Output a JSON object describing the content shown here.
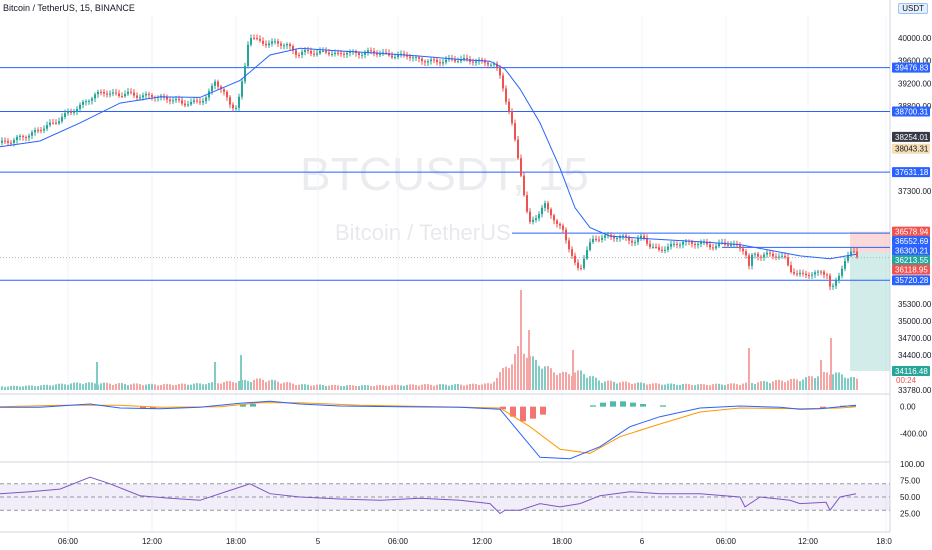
{
  "header": {
    "title": "Bitcoin / TetherUS, 15, BINANCE",
    "currency": "USDT"
  },
  "watermark": {
    "symbol": "BTCUSDT, 15",
    "name": "Bitcoin / TetherUS"
  },
  "colors": {
    "up": "#26a69a",
    "down": "#ef5350",
    "level": "#2962ff",
    "ma": "#2962ff",
    "macd": "#2962ff",
    "signal": "#ff9800",
    "rsi": "#7e57c2"
  },
  "chart_data": {
    "type": "candlestick",
    "y_range": [
      33500,
      40350
    ],
    "price_ticks": [
      "40000.00",
      "39600.00",
      "39200.00",
      "38800.00",
      "37300.00",
      "35300.00",
      "35000.00",
      "34700.00",
      "34400.00",
      "33780.00"
    ],
    "time_ticks": [
      "06:00",
      "12:00",
      "18:00",
      "5",
      "06:00",
      "12:00",
      "18:00",
      "6",
      "06:00",
      "12:00",
      "18:0"
    ],
    "horizontal_levels": [
      {
        "price": 39476.83,
        "label": "39476.83"
      },
      {
        "price": 38700.31,
        "label": "38700.31"
      },
      {
        "price": 37631.18,
        "label": "37631.18"
      },
      {
        "price": 35720.28,
        "label": "35720.28"
      }
    ],
    "price_tags": [
      {
        "price": 38254.01,
        "label": "38254.01",
        "color": "#363a45"
      },
      {
        "price": 38043.31,
        "label": "38043.31",
        "color": "#f5deb3"
      },
      {
        "price": 36578.94,
        "label": "36578.94",
        "color": "#ef5350"
      },
      {
        "price": 36552.69,
        "label": "36552.69",
        "color": "#2962ff"
      },
      {
        "price": 36300.21,
        "label": "36300.21",
        "color": "#2962ff"
      },
      {
        "price": 36213.55,
        "label": "36213.55",
        "color": "#26a69a"
      },
      {
        "price": 36118.95,
        "label": "36118.95",
        "color": "#ef5350"
      },
      {
        "price": 34116.48,
        "label": "34116.48",
        "color": "#26a69a"
      }
    ],
    "countdown": "00:24",
    "position": {
      "entry": 36213.55,
      "stop": 36578.94,
      "target": 34116.48
    },
    "close_path": [
      [
        0,
        38150
      ],
      [
        10,
        38180
      ],
      [
        20,
        38250
      ],
      [
        30,
        38300
      ],
      [
        38,
        38380
      ],
      [
        46,
        38450
      ],
      [
        54,
        38500
      ],
      [
        62,
        38620
      ],
      [
        70,
        38700
      ],
      [
        78,
        38780
      ],
      [
        86,
        38900
      ],
      [
        94,
        38990
      ],
      [
        102,
        39050
      ],
      [
        110,
        39010
      ],
      [
        118,
        38990
      ],
      [
        126,
        39030
      ],
      [
        134,
        38980
      ],
      [
        142,
        38970
      ],
      [
        150,
        38990
      ],
      [
        158,
        38950
      ],
      [
        166,
        38930
      ],
      [
        174,
        38900
      ],
      [
        182,
        38840
      ],
      [
        190,
        38850
      ],
      [
        198,
        38880
      ],
      [
        206,
        38950
      ],
      [
        214,
        39250
      ],
      [
        222,
        39050
      ],
      [
        230,
        38800
      ],
      [
        236,
        38780
      ],
      [
        240,
        39100
      ],
      [
        244,
        39500
      ],
      [
        248,
        40050
      ],
      [
        256,
        39950
      ],
      [
        266,
        39900
      ],
      [
        276,
        39920
      ],
      [
        286,
        39870
      ],
      [
        296,
        39720
      ],
      [
        306,
        39760
      ],
      [
        316,
        39730
      ],
      [
        326,
        39760
      ],
      [
        336,
        39700
      ],
      [
        346,
        39760
      ],
      [
        356,
        39720
      ],
      [
        366,
        39750
      ],
      [
        376,
        39740
      ],
      [
        386,
        39700
      ],
      [
        396,
        39680
      ],
      [
        406,
        39700
      ],
      [
        416,
        39620
      ],
      [
        426,
        39600
      ],
      [
        436,
        39580
      ],
      [
        446,
        39600
      ],
      [
        456,
        39620
      ],
      [
        466,
        39610
      ],
      [
        476,
        39590
      ],
      [
        486,
        39570
      ],
      [
        494,
        39520
      ],
      [
        500,
        39300
      ],
      [
        505,
        38900
      ],
      [
        510,
        38550
      ],
      [
        515,
        38100
      ],
      [
        520,
        37600
      ],
      [
        524,
        37100
      ],
      [
        528,
        36700
      ],
      [
        532,
        36800
      ],
      [
        538,
        36900
      ],
      [
        544,
        37050
      ],
      [
        550,
        36900
      ],
      [
        556,
        36700
      ],
      [
        562,
        36600
      ],
      [
        568,
        36300
      ],
      [
        572,
        36100
      ],
      [
        576,
        35900
      ],
      [
        580,
        35950
      ],
      [
        584,
        36200
      ],
      [
        590,
        36400
      ],
      [
        596,
        36450
      ],
      [
        602,
        36500
      ],
      [
        610,
        36480
      ],
      [
        618,
        36500
      ],
      [
        626,
        36450
      ],
      [
        634,
        36400
      ],
      [
        642,
        36500
      ],
      [
        650,
        36300
      ],
      [
        658,
        36250
      ],
      [
        666,
        36300
      ],
      [
        674,
        36350
      ],
      [
        682,
        36400
      ],
      [
        690,
        36370
      ],
      [
        698,
        36380
      ],
      [
        706,
        36350
      ],
      [
        714,
        36300
      ],
      [
        722,
        36380
      ],
      [
        730,
        36350
      ],
      [
        738,
        36300
      ],
      [
        744,
        36250
      ],
      [
        748,
        35950
      ],
      [
        752,
        36200
      ],
      [
        760,
        36150
      ],
      [
        768,
        36180
      ],
      [
        776,
        36150
      ],
      [
        784,
        36100
      ],
      [
        790,
        35900
      ],
      [
        796,
        35800
      ],
      [
        804,
        35850
      ],
      [
        812,
        35800
      ],
      [
        820,
        35900
      ],
      [
        826,
        35800
      ],
      [
        830,
        35500
      ],
      [
        834,
        35700
      ],
      [
        840,
        35900
      ],
      [
        846,
        36100
      ],
      [
        852,
        36300
      ],
      [
        856,
        36150
      ]
    ],
    "ma_path": [
      [
        0,
        38080
      ],
      [
        40,
        38180
      ],
      [
        80,
        38500
      ],
      [
        120,
        38850
      ],
      [
        160,
        38960
      ],
      [
        200,
        38950
      ],
      [
        240,
        39250
      ],
      [
        270,
        39700
      ],
      [
        300,
        39820
      ],
      [
        340,
        39770
      ],
      [
        380,
        39730
      ],
      [
        420,
        39680
      ],
      [
        460,
        39620
      ],
      [
        490,
        39590
      ],
      [
        505,
        39450
      ],
      [
        520,
        39100
      ],
      [
        540,
        38500
      ],
      [
        560,
        37700
      ],
      [
        575,
        37000
      ],
      [
        590,
        36650
      ],
      [
        610,
        36500
      ],
      [
        650,
        36450
      ],
      [
        700,
        36400
      ],
      [
        740,
        36350
      ],
      [
        770,
        36250
      ],
      [
        800,
        36150
      ],
      [
        830,
        36100
      ],
      [
        856,
        36180
      ]
    ],
    "volume": {
      "max": 100,
      "baseline_path": [
        [
          0,
          4
        ],
        [
          40,
          5
        ],
        [
          80,
          8
        ],
        [
          120,
          7
        ],
        [
          160,
          6
        ],
        [
          200,
          7
        ],
        [
          240,
          10
        ],
        [
          260,
          12
        ],
        [
          300,
          6
        ],
        [
          340,
          5
        ],
        [
          380,
          5
        ],
        [
          420,
          6
        ],
        [
          460,
          6
        ],
        [
          490,
          7
        ],
        [
          500,
          20
        ],
        [
          510,
          30
        ],
        [
          520,
          50
        ],
        [
          530,
          35
        ],
        [
          545,
          25
        ],
        [
          560,
          18
        ],
        [
          580,
          20
        ],
        [
          600,
          10
        ],
        [
          650,
          7
        ],
        [
          700,
          6
        ],
        [
          740,
          7
        ],
        [
          760,
          9
        ],
        [
          800,
          12
        ],
        [
          830,
          20
        ],
        [
          856,
          12
        ]
      ],
      "spikes": [
        {
          "x": 240,
          "v": 35,
          "dir": "up"
        },
        {
          "x": 214,
          "v": 28,
          "dir": "up"
        },
        {
          "x": 96,
          "v": 28,
          "dir": "up"
        },
        {
          "x": 520,
          "v": 100,
          "dir": "down"
        },
        {
          "x": 528,
          "v": 60,
          "dir": "down"
        },
        {
          "x": 572,
          "v": 40,
          "dir": "down"
        },
        {
          "x": 748,
          "v": 42,
          "dir": "down"
        },
        {
          "x": 830,
          "v": 52,
          "dir": "down"
        },
        {
          "x": 820,
          "v": 30,
          "dir": "down"
        }
      ]
    },
    "macd": {
      "ticks": [
        "0.00",
        "-400.00"
      ],
      "range": [
        -800,
        160
      ],
      "macd_path": [
        [
          0,
          -10
        ],
        [
          40,
          -10
        ],
        [
          90,
          40
        ],
        [
          120,
          -20
        ],
        [
          160,
          -30
        ],
        [
          200,
          -10
        ],
        [
          240,
          50
        ],
        [
          270,
          80
        ],
        [
          300,
          40
        ],
        [
          340,
          10
        ],
        [
          400,
          0
        ],
        [
          460,
          -10
        ],
        [
          500,
          -40
        ],
        [
          520,
          -400
        ],
        [
          540,
          -760
        ],
        [
          570,
          -780
        ],
        [
          600,
          -600
        ],
        [
          630,
          -300
        ],
        [
          660,
          -150
        ],
        [
          700,
          -20
        ],
        [
          740,
          10
        ],
        [
          780,
          -10
        ],
        [
          800,
          -40
        ],
        [
          820,
          -30
        ],
        [
          840,
          0
        ],
        [
          856,
          20
        ]
      ],
      "signal_path": [
        [
          0,
          0
        ],
        [
          60,
          20
        ],
        [
          120,
          20
        ],
        [
          160,
          -10
        ],
        [
          220,
          0
        ],
        [
          260,
          60
        ],
        [
          300,
          60
        ],
        [
          360,
          20
        ],
        [
          440,
          0
        ],
        [
          500,
          -20
        ],
        [
          530,
          -300
        ],
        [
          560,
          -640
        ],
        [
          590,
          -700
        ],
        [
          620,
          -450
        ],
        [
          660,
          -260
        ],
        [
          700,
          -80
        ],
        [
          740,
          -20
        ],
        [
          800,
          -30
        ],
        [
          840,
          -20
        ],
        [
          856,
          0
        ]
      ],
      "histogram": [
        [
          500,
          -40
        ],
        [
          510,
          -150
        ],
        [
          520,
          -220
        ],
        [
          530,
          -180
        ],
        [
          540,
          -120
        ],
        [
          590,
          20
        ],
        [
          600,
          60
        ],
        [
          610,
          80
        ],
        [
          620,
          80
        ],
        [
          630,
          60
        ],
        [
          640,
          40
        ],
        [
          660,
          20
        ],
        [
          240,
          30
        ],
        [
          250,
          40
        ],
        [
          140,
          -30
        ],
        [
          150,
          -30
        ],
        [
          820,
          -20
        ],
        [
          840,
          15
        ],
        [
          850,
          20
        ]
      ]
    },
    "rsi": {
      "ticks": [
        "100.00",
        "75.00",
        "50.00",
        "25.00"
      ],
      "band": [
        30,
        70
      ],
      "path": [
        [
          0,
          55
        ],
        [
          30,
          58
        ],
        [
          60,
          62
        ],
        [
          90,
          80
        ],
        [
          110,
          70
        ],
        [
          140,
          52
        ],
        [
          170,
          48
        ],
        [
          200,
          45
        ],
        [
          230,
          60
        ],
        [
          250,
          70
        ],
        [
          270,
          55
        ],
        [
          300,
          50
        ],
        [
          340,
          47
        ],
        [
          380,
          45
        ],
        [
          420,
          48
        ],
        [
          460,
          45
        ],
        [
          490,
          40
        ],
        [
          500,
          25
        ],
        [
          505,
          30
        ],
        [
          520,
          30
        ],
        [
          540,
          40
        ],
        [
          560,
          35
        ],
        [
          580,
          40
        ],
        [
          600,
          52
        ],
        [
          630,
          58
        ],
        [
          660,
          55
        ],
        [
          700,
          55
        ],
        [
          740,
          50
        ],
        [
          745,
          35
        ],
        [
          760,
          50
        ],
        [
          790,
          45
        ],
        [
          800,
          40
        ],
        [
          826,
          42
        ],
        [
          830,
          30
        ],
        [
          840,
          50
        ],
        [
          856,
          55
        ]
      ]
    }
  }
}
